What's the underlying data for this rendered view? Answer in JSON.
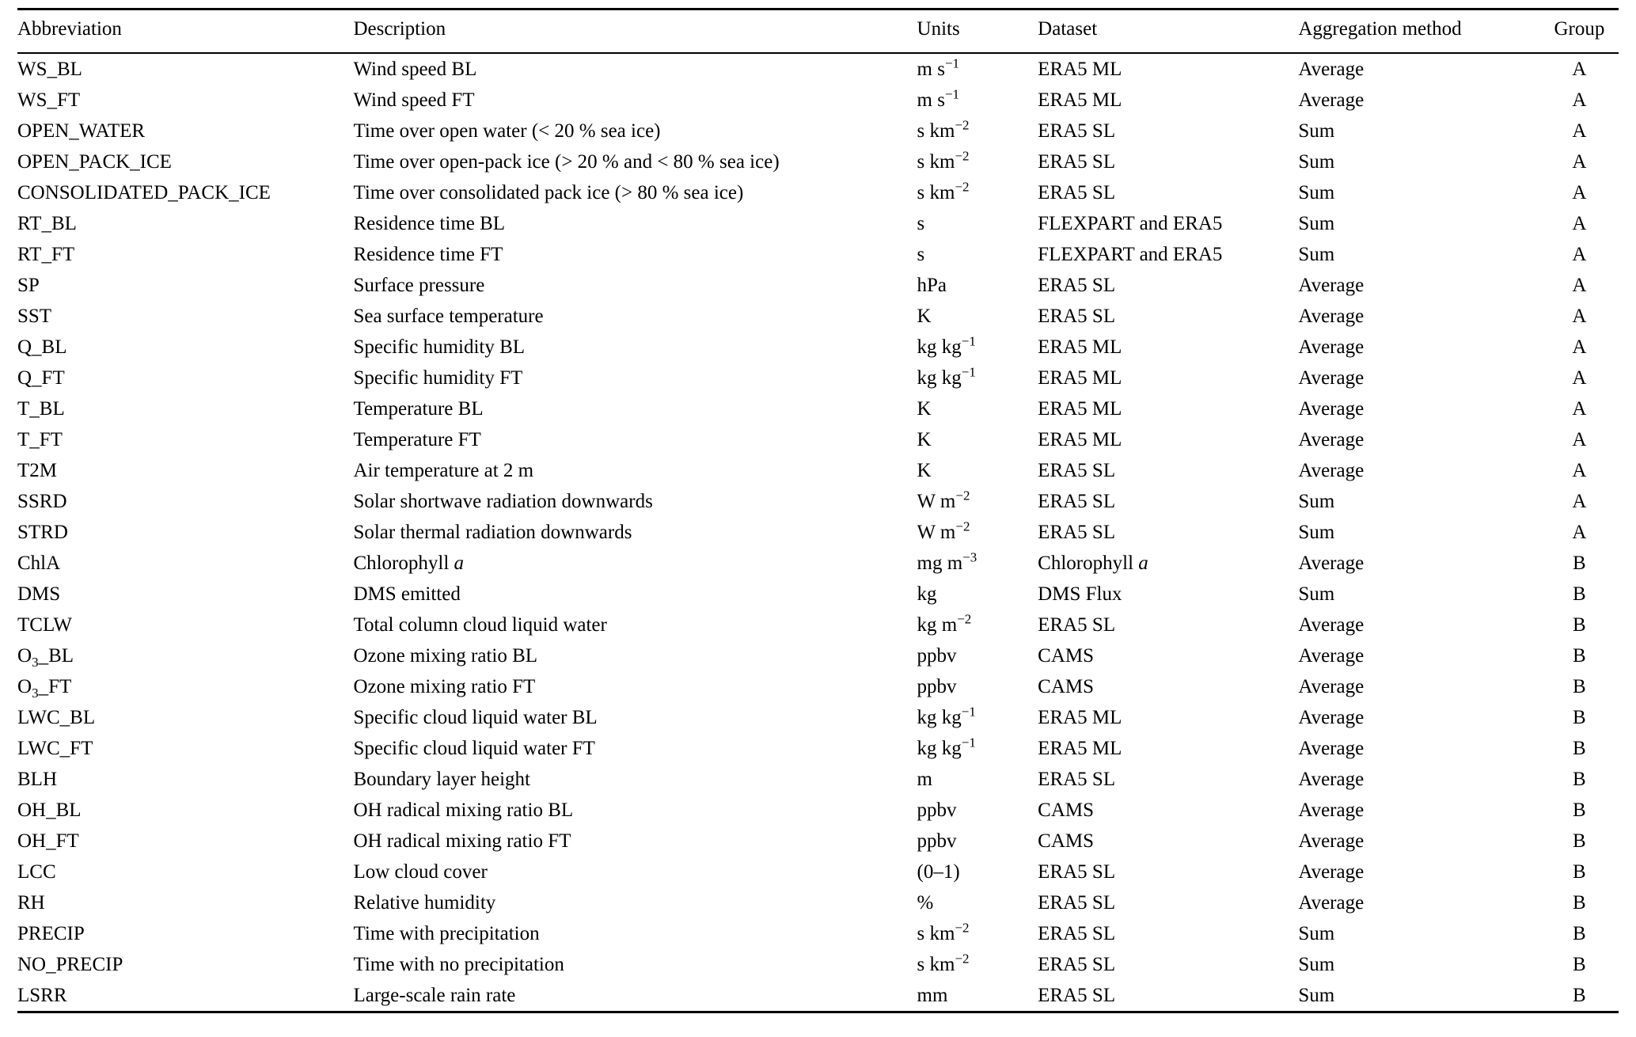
{
  "table": {
    "columns": [
      {
        "key": "abbreviation",
        "label": "Abbreviation"
      },
      {
        "key": "description",
        "label": "Description"
      },
      {
        "key": "units",
        "label": "Units"
      },
      {
        "key": "dataset",
        "label": "Dataset"
      },
      {
        "key": "aggregation",
        "label": "Aggregation method"
      },
      {
        "key": "group",
        "label": "Group"
      }
    ],
    "rows": [
      {
        "abbreviation": "WS_BL",
        "description": "Wind speed BL",
        "units": "m s^{−1}",
        "dataset": "ERA5 ML",
        "aggregation": "Average",
        "group": "A"
      },
      {
        "abbreviation": "WS_FT",
        "description": "Wind speed FT",
        "units": "m s^{−1}",
        "dataset": "ERA5 ML",
        "aggregation": "Average",
        "group": "A"
      },
      {
        "abbreviation": "OPEN_WATER",
        "description": "Time over open water (< 20 % sea ice)",
        "units": "s km^{−2}",
        "dataset": "ERA5 SL",
        "aggregation": "Sum",
        "group": "A"
      },
      {
        "abbreviation": "OPEN_PACK_ICE",
        "description": "Time over open-pack ice (> 20 % and < 80 % sea ice)",
        "units": "s km^{−2}",
        "dataset": "ERA5 SL",
        "aggregation": "Sum",
        "group": "A"
      },
      {
        "abbreviation": "CONSOLIDATED_PACK_ICE",
        "description": "Time over consolidated pack ice (> 80 % sea ice)",
        "units": "s km^{−2}",
        "dataset": "ERA5 SL",
        "aggregation": "Sum",
        "group": "A"
      },
      {
        "abbreviation": "RT_BL",
        "description": "Residence time BL",
        "units": "s",
        "dataset": "FLEXPART and ERA5",
        "aggregation": "Sum",
        "group": "A"
      },
      {
        "abbreviation": "RT_FT",
        "description": "Residence time FT",
        "units": "s",
        "dataset": "FLEXPART and ERA5",
        "aggregation": "Sum",
        "group": "A"
      },
      {
        "abbreviation": "SP",
        "description": "Surface pressure",
        "units": "hPa",
        "dataset": "ERA5 SL",
        "aggregation": "Average",
        "group": "A"
      },
      {
        "abbreviation": "SST",
        "description": "Sea surface temperature",
        "units": "K",
        "dataset": "ERA5 SL",
        "aggregation": "Average",
        "group": "A"
      },
      {
        "abbreviation": "Q_BL",
        "description": "Specific humidity BL",
        "units": "kg kg^{−1}",
        "dataset": "ERA5 ML",
        "aggregation": "Average",
        "group": "A"
      },
      {
        "abbreviation": "Q_FT",
        "description": "Specific humidity FT",
        "units": "kg kg^{−1}",
        "dataset": "ERA5 ML",
        "aggregation": "Average",
        "group": "A"
      },
      {
        "abbreviation": "T_BL",
        "description": "Temperature BL",
        "units": "K",
        "dataset": "ERA5 ML",
        "aggregation": "Average",
        "group": "A"
      },
      {
        "abbreviation": "T_FT",
        "description": "Temperature FT",
        "units": "K",
        "dataset": "ERA5 ML",
        "aggregation": "Average",
        "group": "A"
      },
      {
        "abbreviation": "T2M",
        "description": "Air temperature at 2 m",
        "units": "K",
        "dataset": "ERA5 SL",
        "aggregation": "Average",
        "group": "A"
      },
      {
        "abbreviation": "SSRD",
        "description": "Solar shortwave radiation downwards",
        "units": "W m^{−2}",
        "dataset": "ERA5 SL",
        "aggregation": "Sum",
        "group": "A"
      },
      {
        "abbreviation": "STRD",
        "description": "Solar thermal radiation downwards",
        "units": "W m^{−2}",
        "dataset": "ERA5 SL",
        "aggregation": "Sum",
        "group": "A"
      },
      {
        "abbreviation": "ChlA",
        "description": "Chlorophyll *a*",
        "units": "mg m^{−3}",
        "dataset": "Chlorophyll *a*",
        "aggregation": "Average",
        "group": "B"
      },
      {
        "abbreviation": "DMS",
        "description": "DMS emitted",
        "units": "kg",
        "dataset": "DMS Flux",
        "aggregation": "Sum",
        "group": "B"
      },
      {
        "abbreviation": "TCLW",
        "description": "Total column cloud liquid water",
        "units": "kg m^{−2}",
        "dataset": "ERA5 SL",
        "aggregation": "Average",
        "group": "B"
      },
      {
        "abbreviation": "O_{3}_BL",
        "description": "Ozone mixing ratio BL",
        "units": "ppbv",
        "dataset": "CAMS",
        "aggregation": "Average",
        "group": "B"
      },
      {
        "abbreviation": "O_{3}_FT",
        "description": "Ozone mixing ratio FT",
        "units": "ppbv",
        "dataset": "CAMS",
        "aggregation": "Average",
        "group": "B"
      },
      {
        "abbreviation": "LWC_BL",
        "description": "Specific cloud liquid water BL",
        "units": "kg kg^{−1}",
        "dataset": "ERA5 ML",
        "aggregation": "Average",
        "group": "B"
      },
      {
        "abbreviation": "LWC_FT",
        "description": "Specific cloud liquid water FT",
        "units": "kg kg^{−1}",
        "dataset": "ERA5 ML",
        "aggregation": "Average",
        "group": "B"
      },
      {
        "abbreviation": "BLH",
        "description": "Boundary layer height",
        "units": "m",
        "dataset": "ERA5 SL",
        "aggregation": "Average",
        "group": "B"
      },
      {
        "abbreviation": "OH_BL",
        "description": "OH radical mixing ratio BL",
        "units": "ppbv",
        "dataset": "CAMS",
        "aggregation": "Average",
        "group": "B"
      },
      {
        "abbreviation": "OH_FT",
        "description": "OH radical mixing ratio FT",
        "units": "ppbv",
        "dataset": "CAMS",
        "aggregation": "Average",
        "group": "B"
      },
      {
        "abbreviation": "LCC",
        "description": "Low cloud cover",
        "units": "(0–1)",
        "dataset": "ERA5 SL",
        "aggregation": "Average",
        "group": "B"
      },
      {
        "abbreviation": "RH",
        "description": "Relative humidity",
        "units": "%",
        "dataset": "ERA5 SL",
        "aggregation": "Average",
        "group": "B"
      },
      {
        "abbreviation": "PRECIP",
        "description": "Time with precipitation",
        "units": "s km^{−2}",
        "dataset": "ERA5 SL",
        "aggregation": "Sum",
        "group": "B"
      },
      {
        "abbreviation": "NO_PRECIP",
        "description": "Time with no precipitation",
        "units": "s km^{−2}",
        "dataset": "ERA5 SL",
        "aggregation": "Sum",
        "group": "B"
      },
      {
        "abbreviation": "LSRR",
        "description": "Large-scale rain rate",
        "units": "mm",
        "dataset": "ERA5 SL",
        "aggregation": "Sum",
        "group": "B"
      }
    ]
  }
}
